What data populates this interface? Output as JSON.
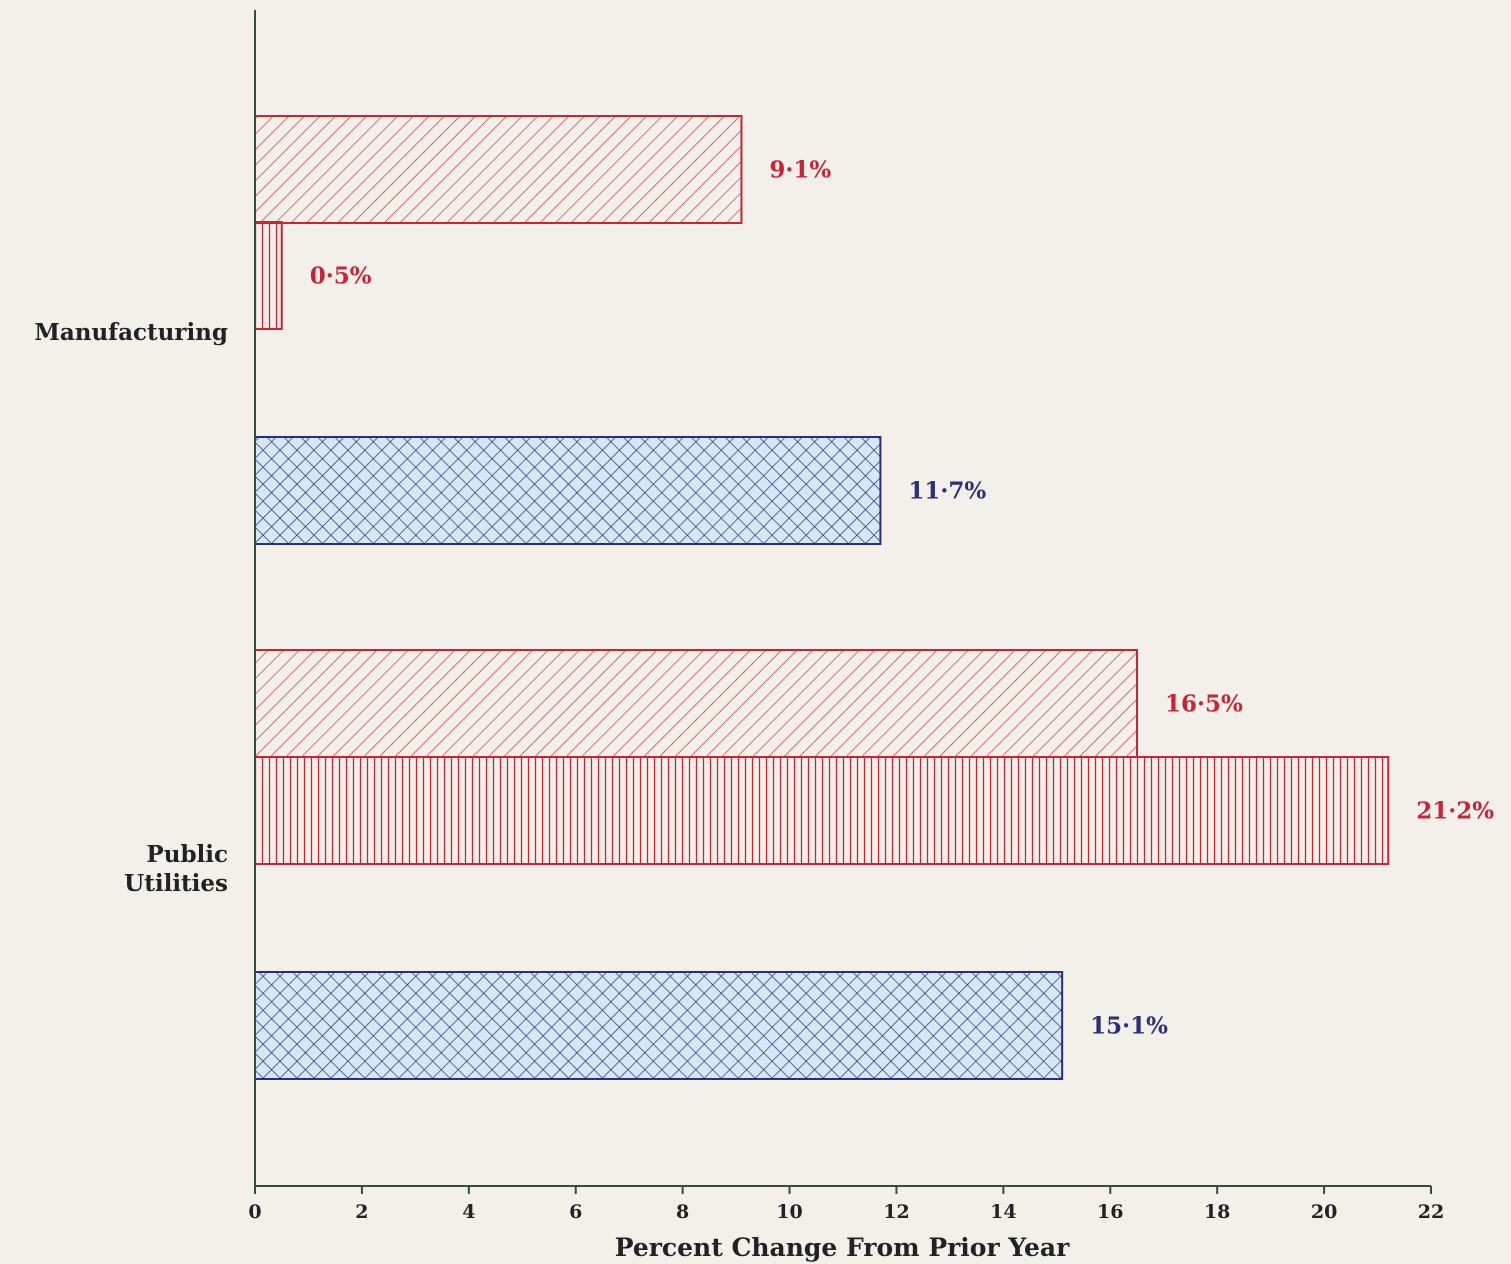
{
  "chart_data": {
    "type": "bar",
    "orientation": "horizontal",
    "categories": [
      "Manufacturing",
      "Public\nUtilities"
    ],
    "category_lines": [
      [
        "Manufacturing"
      ],
      [
        "Public",
        "Utilities"
      ]
    ],
    "bars": [
      {
        "category": "Manufacturing",
        "value": 9.1,
        "label": "9·1%",
        "pattern": "diagonal",
        "color": "#cc2233"
      },
      {
        "category": "Manufacturing",
        "value": 0.5,
        "label": "0·5%",
        "pattern": "vertical",
        "color": "#cc2233"
      },
      {
        "category": "Manufacturing",
        "value": 11.7,
        "label": "11·7%",
        "pattern": "crosshatch",
        "color": "#2a2f7a"
      },
      {
        "category": "Public Utilities",
        "value": 16.5,
        "label": "16·5%",
        "pattern": "diagonal",
        "color": "#cc2233"
      },
      {
        "category": "Public Utilities",
        "value": 21.2,
        "label": "21·2%",
        "pattern": "vertical",
        "color": "#cc2233"
      },
      {
        "category": "Public Utilities",
        "value": 15.1,
        "label": "15·1%",
        "pattern": "crosshatch",
        "color": "#2a2f7a"
      }
    ],
    "xlabel": "Percent Change From Prior Year",
    "xlim": [
      0,
      22
    ],
    "xticks": [
      0,
      2,
      4,
      6,
      8,
      10,
      12,
      14,
      16,
      18,
      20,
      22
    ],
    "grid": false,
    "colors": {
      "red": "#cc2233",
      "blue": "#2a2f7a",
      "axis": "#2f4f3f",
      "background": "#f3f0ea"
    }
  }
}
